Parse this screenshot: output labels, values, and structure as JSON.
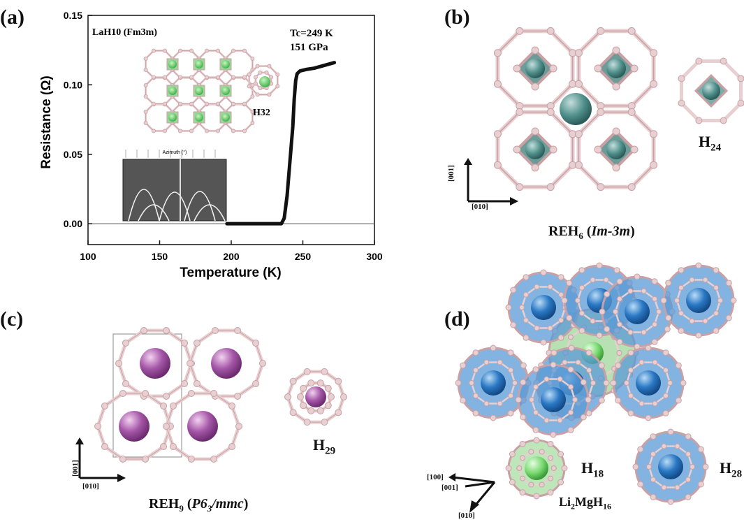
{
  "panels": {
    "a": {
      "label": "(a)"
    },
    "b": {
      "label": "(b)",
      "compound": "REH",
      "sub": "6",
      "space_group": "Im-3m",
      "cage_h": "H",
      "cage_sub": "24",
      "axis_up": "[001]",
      "axis_right": "[010]"
    },
    "c": {
      "label": "(c)",
      "compound": "REH",
      "sub": "9",
      "space_group_pre": "P6",
      "space_group_sub": "3",
      "space_group_post": "/mmc",
      "cage_h": "H",
      "cage_sub": "29",
      "axis_up": "[001]",
      "axis_right": "[010]"
    },
    "d": {
      "label": "(d)",
      "compound": "Li",
      "sub1": "2",
      "mid": "MgH",
      "sub2": "16",
      "cage1_h": "H",
      "cage1_sub": "18",
      "cage2_h": "H",
      "cage2_sub": "28",
      "axis_a": "[100]",
      "axis_b": "[001]",
      "axis_c": "[010]"
    }
  },
  "chart_data": {
    "type": "line",
    "xlabel": "Temperature (K)",
    "ylabel": "Resistance (Ω)",
    "xlim": [
      100,
      300
    ],
    "ylim": [
      -0.015,
      0.15
    ],
    "xticks": [
      100,
      150,
      200,
      250,
      300
    ],
    "yticks": [
      0.0,
      0.05,
      0.1,
      0.15
    ],
    "ytick_labels": [
      "0.00",
      "0.05",
      "0.10",
      "0.15"
    ],
    "inset_compound": "LaH10 (Fm3m)",
    "inset_cage": "H32",
    "annotation_tc": "Tc=249 K",
    "annotation_p": "151 GPa",
    "inset_xray_label": "Azimuth (°)",
    "series": [
      {
        "x": [
          197,
          210,
          220,
          230,
          235,
          237,
          239,
          241,
          243,
          244,
          245,
          246,
          248,
          252,
          258,
          265,
          272
        ],
        "y": [
          0.0,
          0.0,
          0.0,
          0.0,
          0.0,
          0.004,
          0.02,
          0.045,
          0.07,
          0.09,
          0.103,
          0.108,
          0.11,
          0.111,
          0.112,
          0.114,
          0.116
        ]
      }
    ],
    "color": "#111111",
    "baseline": 0.0
  }
}
